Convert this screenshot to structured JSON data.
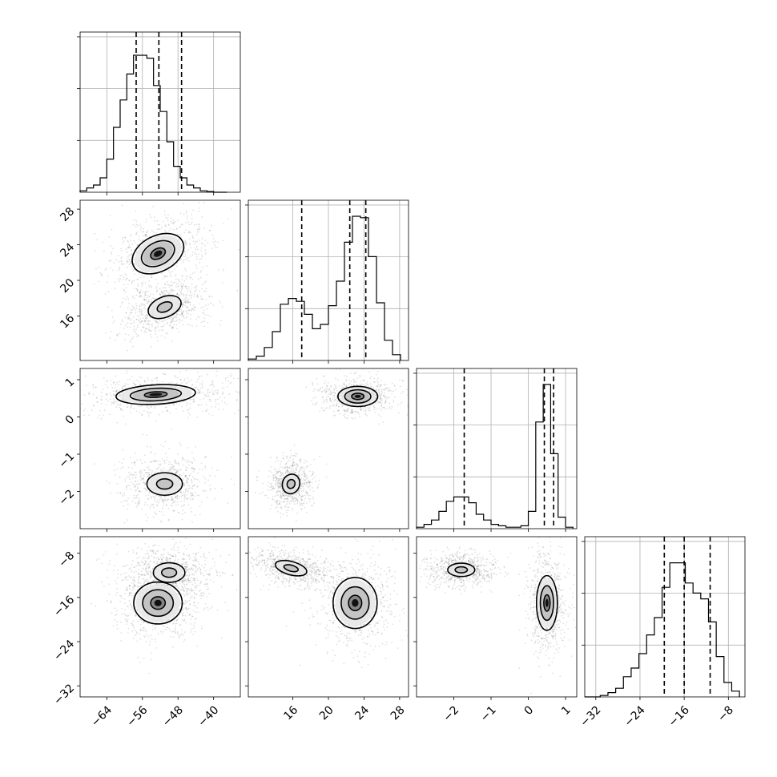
{
  "chart_data": {
    "type": "corner",
    "title": "",
    "grid": true,
    "parameters": [
      {
        "index": 0,
        "axis_range": [
          -70,
          -34
        ],
        "ticks": [
          -64,
          -56,
          -48,
          -40
        ],
        "tick_labels": [
          "−64",
          "−56",
          "−48",
          "−40"
        ],
        "quantiles": [
          -57.4,
          -52.3,
          -47.2
        ],
        "histogram": {
          "bin_edges": [
            -70,
            -68.5,
            -67,
            -65.5,
            -64,
            -62.5,
            -61,
            -59.5,
            -58,
            -56.5,
            -55,
            -53.5,
            -52,
            -50.5,
            -49,
            -47.5,
            -46,
            -44.5,
            -43,
            -41.5,
            -40,
            -38.5,
            -37
          ],
          "counts": [
            0.01,
            0.03,
            0.05,
            0.1,
            0.23,
            0.45,
            0.64,
            0.82,
            0.95,
            0.95,
            0.93,
            0.74,
            0.56,
            0.35,
            0.18,
            0.1,
            0.05,
            0.03,
            0.01,
            0.005,
            0.0,
            0.0
          ]
        }
      },
      {
        "index": 1,
        "axis_range": [
          11,
          29
        ],
        "ticks": [
          16,
          20,
          24,
          28
        ],
        "tick_labels": [
          "16",
          "20",
          "24",
          "28"
        ],
        "quantiles": [
          17.0,
          22.4,
          24.2
        ],
        "histogram": {
          "bin_edges": [
            11,
            11.9,
            12.8,
            13.7,
            14.6,
            15.5,
            16.4,
            17.3,
            18.2,
            19.1,
            20,
            20.9,
            21.8,
            22.7,
            23.6,
            24.5,
            25.4,
            26.3,
            27.2,
            28.1
          ],
          "counts": [
            0.01,
            0.03,
            0.09,
            0.2,
            0.39,
            0.43,
            0.41,
            0.32,
            0.22,
            0.25,
            0.38,
            0.55,
            0.82,
            1.0,
            0.99,
            0.72,
            0.4,
            0.14,
            0.04
          ]
        }
      },
      {
        "index": 2,
        "axis_range": [
          -3.0,
          1.3
        ],
        "ticks": [
          -2,
          -1,
          0,
          1
        ],
        "tick_labels": [
          "−2",
          "−1",
          "0",
          "1"
        ],
        "quantiles": [
          -1.72,
          0.43,
          0.68
        ],
        "histogram": {
          "bin_edges": [
            -3.0,
            -2.8,
            -2.6,
            -2.4,
            -2.2,
            -2.0,
            -1.8,
            -1.6,
            -1.4,
            -1.2,
            -1.0,
            -0.8,
            -0.6,
            -0.4,
            -0.2,
            0.0,
            0.2,
            0.4,
            0.6,
            0.8,
            1.0,
            1.2
          ],
          "counts": [
            0.01,
            0.03,
            0.06,
            0.12,
            0.19,
            0.22,
            0.22,
            0.18,
            0.1,
            0.06,
            0.03,
            0.02,
            0.01,
            0.01,
            0.02,
            0.12,
            0.74,
            1.0,
            0.52,
            0.08,
            0.01
          ]
        }
      },
      {
        "index": 3,
        "axis_range": [
          -34,
          -5
        ],
        "ticks": [
          -32,
          -24,
          -16,
          -8
        ],
        "tick_labels": [
          "−32",
          "−24",
          "−16",
          "−8"
        ],
        "quantiles": [
          -19.6,
          -16.0,
          -11.3
        ],
        "histogram": {
          "bin_edges": [
            -34,
            -32.6,
            -31.2,
            -29.8,
            -28.4,
            -27,
            -25.6,
            -24.2,
            -22.8,
            -21.4,
            -20,
            -18.6,
            -17.2,
            -15.8,
            -14.4,
            -13,
            -11.6,
            -10.2,
            -8.8,
            -7.4,
            -6
          ],
          "counts": [
            0.0,
            0.0,
            0.01,
            0.03,
            0.06,
            0.14,
            0.2,
            0.3,
            0.43,
            0.55,
            0.76,
            0.93,
            0.93,
            0.79,
            0.72,
            0.68,
            0.52,
            0.28,
            0.1,
            0.04
          ]
        }
      }
    ],
    "pairs": [
      {
        "x_param": 0,
        "y_param": 1,
        "modes": [
          {
            "center": [
              -52.5,
              23.0
            ],
            "sigma": [
              4.0,
              1.3
            ],
            "angle_deg": 27,
            "levels": [
              0.4,
              0.9,
              1.4
            ]
          },
          {
            "center": [
              -51.0,
              17.0
            ],
            "sigma": [
              3.2,
              0.95
            ],
            "angle_deg": 22,
            "levels": [
              0.5,
              1.1
            ]
          }
        ]
      },
      {
        "x_param": 0,
        "y_param": 2,
        "modes": [
          {
            "center": [
              -53.0,
              0.6
            ],
            "sigma": [
              5.8,
              0.17
            ],
            "angle_deg": 3,
            "levels": [
              0.4,
              0.9,
              1.4
            ]
          },
          {
            "center": [
              -51.0,
              -1.8
            ],
            "sigma": [
              3.3,
              0.25
            ],
            "angle_deg": 0,
            "levels": [
              0.5,
              1.1
            ]
          }
        ]
      },
      {
        "x_param": 1,
        "y_param": 2,
        "modes": [
          {
            "center": [
              23.3,
              0.55
            ],
            "sigma": [
              1.4,
              0.17
            ],
            "angle_deg": 0,
            "levels": [
              0.45,
              0.95,
              1.45
            ]
          },
          {
            "center": [
              15.8,
              -1.8
            ],
            "sigma": [
              0.8,
              0.22
            ],
            "angle_deg": -20,
            "levels": [
              0.5,
              1.1
            ]
          }
        ]
      },
      {
        "x_param": 0,
        "y_param": 3,
        "modes": [
          {
            "center": [
              -52.5,
              -17.0
            ],
            "sigma": [
              3.3,
              2.3
            ],
            "angle_deg": 0,
            "levels": [
              0.45,
              0.95,
              1.5
            ]
          },
          {
            "center": [
              -50.0,
              -11.5
            ],
            "sigma": [
              3.4,
              1.7
            ],
            "angle_deg": 0,
            "levels": [
              0.45,
              0.95
            ]
          }
        ]
      },
      {
        "x_param": 1,
        "y_param": 3,
        "modes": [
          {
            "center": [
              23.0,
              -17.0
            ],
            "sigma": [
              1.5,
              2.8
            ],
            "angle_deg": 0,
            "levels": [
              0.45,
              0.95,
              1.5
            ]
          },
          {
            "center": [
              15.8,
              -10.7
            ],
            "sigma": [
              1.5,
              1.0
            ],
            "angle_deg": -15,
            "levels": [
              0.5,
              1.1
            ]
          }
        ]
      },
      {
        "x_param": 2,
        "y_param": 3,
        "modes": [
          {
            "center": [
              0.5,
              -17.0
            ],
            "sigma": [
              0.17,
              3.0
            ],
            "angle_deg": 0,
            "levels": [
              0.45,
              0.95,
              1.5
            ]
          },
          {
            "center": [
              -1.8,
              -11.0
            ],
            "sigma": [
              0.3,
              1.0
            ],
            "angle_deg": 0,
            "levels": [
              0.5,
              1.1
            ]
          }
        ]
      }
    ]
  }
}
